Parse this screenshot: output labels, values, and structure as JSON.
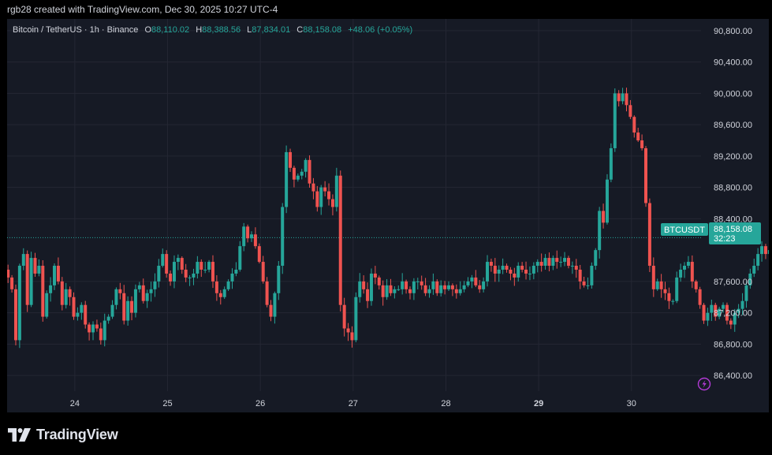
{
  "header": {
    "attribution": "rgb28 created with TradingView.com, Dec 30, 2025 10:27 UTC-4"
  },
  "legend": {
    "symbol": "Bitcoin / TetherUS · 1h · Binance",
    "open_label": "O",
    "open": "88,110.02",
    "high_label": "H",
    "high": "88,388.56",
    "low_label": "L",
    "low": "87,834.01",
    "close_label": "C",
    "close": "88,158.08",
    "change": "+48.06 (+0.05%)"
  },
  "price_tag": {
    "symbol": "BTCUSDT",
    "price": "88,158.08",
    "countdown": "32:23"
  },
  "brand": {
    "name": "TradingView"
  },
  "colors": {
    "background": "#161a25",
    "up": "#26a69a",
    "down": "#ef5350",
    "grid": "#242733",
    "axis_text": "#d1d4dc"
  },
  "chart_data": {
    "type": "candlestick",
    "interval": "1h",
    "y_ticks": [
      "90,800.00",
      "90,400.00",
      "90,000.00",
      "89,600.00",
      "89,200.00",
      "88,800.00",
      "88,400.00",
      "87,600.00",
      "87,200.00",
      "86,800.00",
      "86,400.00"
    ],
    "y_tick_values": [
      90800,
      90400,
      90000,
      89600,
      89200,
      88800,
      88400,
      87600,
      87200,
      86800,
      86400
    ],
    "x_ticks": [
      "24",
      "25",
      "26",
      "27",
      "28",
      "29",
      "30"
    ],
    "x_tick_days": [
      24,
      25,
      26,
      27,
      28,
      29,
      30
    ],
    "ylim": [
      86200,
      90950
    ],
    "xlim": [
      23.27,
      30.75
    ],
    "last_price": 88158.08,
    "series": {
      "t_start": 23.28,
      "step_hours": 1,
      "closes": [
        87650,
        87500,
        86850,
        87800,
        87950,
        87300,
        87900,
        87700,
        87800,
        87150,
        87450,
        87550,
        87800,
        87600,
        87300,
        87500,
        87400,
        87150,
        87200,
        87300,
        87050,
        86950,
        87050,
        87000,
        86850,
        87100,
        87150,
        87300,
        87500,
        87450,
        87100,
        87350,
        87200,
        87500,
        87550,
        87350,
        87450,
        87500,
        87600,
        87800,
        87950,
        87700,
        87600,
        87850,
        87900,
        87750,
        87650,
        87650,
        87700,
        87850,
        87750,
        87750,
        87850,
        87600,
        87450,
        87400,
        87500,
        87600,
        87700,
        87750,
        88050,
        88300,
        88150,
        88200,
        88050,
        87850,
        87600,
        87300,
        87150,
        87450,
        87800,
        88550,
        89250,
        89050,
        88900,
        88950,
        89000,
        89150,
        88850,
        88750,
        88550,
        88800,
        88750,
        88650,
        88550,
        88950,
        87300,
        87000,
        86950,
        86850,
        87400,
        87600,
        87500,
        87350,
        87700,
        87650,
        87550,
        87400,
        87550,
        87450,
        87500,
        87500,
        87600,
        87500,
        87450,
        87600,
        87600,
        87550,
        87450,
        87500,
        87600,
        87450,
        87550,
        87500,
        87550,
        87500,
        87450,
        87500,
        87550,
        87600,
        87650,
        87550,
        87500,
        87600,
        87850,
        87800,
        87700,
        87750,
        87800,
        87750,
        87700,
        87650,
        87800,
        87750,
        87700,
        87700,
        87800,
        87850,
        87800,
        87900,
        87800,
        87900,
        87850,
        87850,
        87900,
        87800,
        87800,
        87750,
        87600,
        87550,
        87550,
        87800,
        88000,
        88500,
        88350,
        88900,
        89300,
        90000,
        89900,
        90000,
        89850,
        89700,
        89500,
        89400,
        89300,
        88600,
        87800,
        87500,
        87600,
        87500,
        87450,
        87350,
        87350,
        87650,
        87750,
        87800,
        87850,
        87600,
        87500,
        87300,
        87100,
        87200,
        87300,
        87150,
        87250,
        87300,
        87100,
        87050,
        87200,
        87250,
        87350,
        87550,
        87700,
        87800,
        87950,
        88050,
        87950,
        88000,
        88158
      ]
    }
  }
}
